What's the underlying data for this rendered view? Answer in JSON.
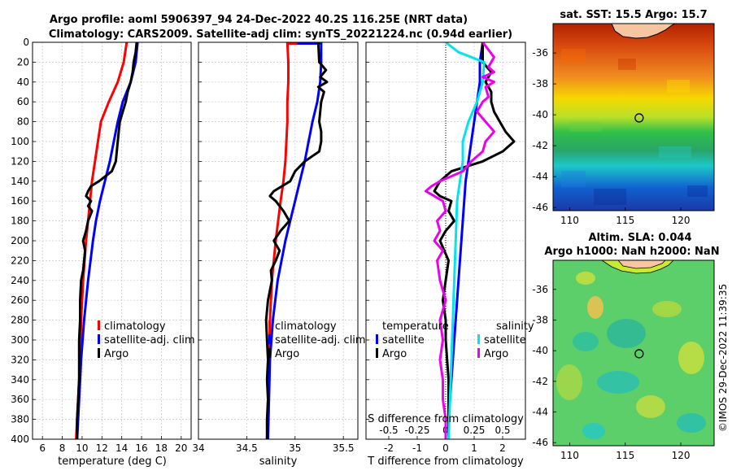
{
  "header": {
    "line1": "Argo profile: aoml 5906397_94 24-Dec-2022 40.2S 116.25E (NRT data)",
    "line2": "Climatology: CARS2009. Satellite-adj clim: synTS_20221224.nc (0.94d earlier)"
  },
  "copyright": "©IMOS 29-Dec-2022 11:39:35",
  "colors": {
    "clim": "#ff0000",
    "sat": "#0000ff",
    "argo": "#000000",
    "sat_sal": "#00e5ee",
    "argo_sal": "#ee00ee"
  },
  "chart_data": [
    {
      "type": "line",
      "id": "temperature",
      "xlabel": "temperature (deg C)",
      "xlim": [
        5,
        21
      ],
      "xticks": [
        6,
        8,
        10,
        12,
        14,
        16,
        18,
        20
      ],
      "ylim": [
        0,
        400
      ],
      "yticks": [
        0,
        20,
        40,
        60,
        80,
        100,
        120,
        140,
        160,
        180,
        200,
        220,
        240,
        260,
        280,
        300,
        320,
        340,
        360,
        380,
        400
      ],
      "legend": [
        "climatology",
        "satellite-adj. clim",
        "Argo"
      ],
      "series": [
        {
          "name": "climatology",
          "color": "red",
          "depth": [
            0,
            20,
            40,
            60,
            80,
            100,
            120,
            140,
            160,
            180,
            200,
            240,
            280,
            320,
            360,
            400
          ],
          "x": [
            14.5,
            14.2,
            13.6,
            12.7,
            11.9,
            11.6,
            11.3,
            11.0,
            10.8,
            10.6,
            10.4,
            10.1,
            9.9,
            9.8,
            9.6,
            9.4
          ]
        },
        {
          "name": "satellite-adj. clim",
          "color": "blue",
          "depth": [
            0,
            20,
            40,
            60,
            80,
            100,
            120,
            140,
            160,
            180,
            200,
            240,
            280,
            320,
            360,
            400
          ],
          "x": [
            15.6,
            15.4,
            14.9,
            14.1,
            13.6,
            13.2,
            12.8,
            12.3,
            11.8,
            11.4,
            11.1,
            10.6,
            10.2,
            9.9,
            9.7,
            9.5
          ]
        },
        {
          "name": "Argo",
          "color": "black",
          "depth": [
            0,
            10,
            20,
            30,
            40,
            50,
            60,
            70,
            80,
            90,
            100,
            110,
            120,
            130,
            140,
            145,
            150,
            155,
            160,
            165,
            170,
            180,
            190,
            200,
            210,
            220,
            230,
            240,
            260,
            280,
            300,
            320,
            340,
            360,
            380,
            400
          ],
          "x": [
            15.5,
            15.4,
            15.2,
            15.1,
            14.9,
            14.6,
            14.4,
            14.1,
            13.8,
            13.7,
            13.6,
            13.5,
            13.4,
            13.0,
            11.7,
            10.9,
            10.6,
            10.4,
            10.9,
            10.6,
            11.0,
            10.6,
            10.4,
            10.1,
            10.3,
            10.2,
            10.1,
            9.9,
            9.8,
            9.8,
            9.7,
            9.7,
            9.7,
            9.6,
            9.5,
            9.5
          ]
        }
      ]
    },
    {
      "type": "line",
      "id": "salinity",
      "xlabel": "salinity",
      "xlim": [
        34,
        35.65
      ],
      "xticks": [
        34,
        34.5,
        35,
        35.5
      ],
      "xticklabels": [
        "34",
        "34.5",
        "35",
        "35.5"
      ],
      "ylim": [
        0,
        400
      ],
      "legend": [
        "climatology",
        "satellite-adj. clim",
        "Argo"
      ],
      "series": [
        {
          "name": "climatology",
          "color": "red",
          "depth": [
            0,
            20,
            40,
            60,
            80,
            100,
            120,
            140,
            160,
            200,
            240,
            280,
            320,
            360,
            400
          ],
          "x": [
            34.92,
            34.93,
            34.93,
            34.92,
            34.92,
            34.91,
            34.9,
            34.88,
            34.85,
            34.8,
            34.76,
            34.74,
            34.73,
            34.72,
            34.71
          ],
          "head": {
            "depth": [
              0,
              0
            ],
            "x": [
              34.92,
              35.02
            ]
          }
        },
        {
          "name": "satellite-adj. clim",
          "color": "blue",
          "depth": [
            0,
            20,
            40,
            60,
            80,
            100,
            120,
            140,
            160,
            180,
            200,
            240,
            280,
            320,
            360,
            400
          ],
          "x": [
            35.27,
            35.27,
            35.26,
            35.23,
            35.18,
            35.14,
            35.1,
            35.05,
            35.0,
            34.95,
            34.9,
            34.82,
            34.77,
            34.74,
            34.73,
            34.72
          ],
          "head": {
            "depth": [
              0,
              0
            ],
            "x": [
              35.02,
              35.27
            ]
          }
        },
        {
          "name": "Argo",
          "color": "black",
          "depth": [
            0,
            20,
            28,
            35,
            40,
            45,
            50,
            60,
            70,
            80,
            90,
            100,
            110,
            120,
            130,
            140,
            150,
            155,
            160,
            170,
            180,
            190,
            200,
            210,
            220,
            230,
            240,
            260,
            280,
            300,
            320,
            340,
            360,
            380,
            400
          ],
          "x": [
            35.24,
            35.25,
            35.32,
            35.26,
            35.33,
            35.24,
            35.3,
            35.27,
            35.26,
            35.25,
            35.27,
            35.27,
            35.25,
            35.1,
            35.0,
            34.95,
            34.78,
            34.74,
            34.8,
            34.88,
            34.94,
            34.85,
            34.78,
            34.84,
            34.8,
            34.75,
            34.76,
            34.72,
            34.7,
            34.71,
            34.72,
            34.71,
            34.72,
            34.71,
            34.71
          ]
        }
      ]
    },
    {
      "type": "line",
      "id": "difference",
      "xlabel": "T difference from climatology",
      "top_xlabel": "S difference from climatology",
      "xlim": [
        -2.8,
        2.8
      ],
      "xticks": [
        -2,
        -1,
        0,
        1,
        2
      ],
      "top_ticks": [
        -0.5,
        -0.25,
        0,
        0.25,
        0.5
      ],
      "top_ticklabels": [
        "-0.5",
        "-0.25",
        "0",
        "0.25",
        "0.5"
      ],
      "ylim": [
        0,
        400
      ],
      "legend_groups": [
        {
          "title": "temperature",
          "items": [
            "satellite",
            "Argo"
          ]
        },
        {
          "title": "salinity",
          "items": [
            "satellite",
            "Argo"
          ]
        }
      ],
      "series": [
        {
          "name": "temperature satellite",
          "color": "blue",
          "depth": [
            0,
            20,
            40,
            60,
            80,
            100,
            140,
            180,
            220,
            260,
            300,
            340,
            380,
            400
          ],
          "x": [
            1.3,
            1.2,
            1.2,
            1.1,
            1.0,
            0.9,
            0.7,
            0.6,
            0.5,
            0.4,
            0.3,
            0.2,
            0.1,
            0.1
          ]
        },
        {
          "name": "temperature Argo",
          "color": "black",
          "depth": [
            0,
            20,
            30,
            40,
            50,
            60,
            70,
            80,
            90,
            100,
            110,
            120,
            130,
            140,
            150,
            155,
            160,
            170,
            180,
            190,
            200,
            220,
            240,
            260,
            280,
            300,
            340,
            380,
            400
          ],
          "x": [
            1.3,
            1.3,
            1.6,
            1.4,
            1.6,
            1.6,
            1.7,
            1.9,
            2.1,
            2.4,
            2.0,
            1.3,
            0.2,
            -0.2,
            -0.4,
            -0.2,
            0.2,
            0.1,
            0.3,
            0.0,
            -0.2,
            0.1,
            0.0,
            -0.1,
            0.0,
            0.0,
            0.1,
            0.1,
            0.1
          ]
        },
        {
          "name": "salinity satellite",
          "color": "cyan",
          "depth": [
            0,
            10,
            20,
            40,
            60,
            80,
            100,
            120,
            140,
            160,
            200,
            240,
            280,
            320,
            360,
            400
          ],
          "x": [
            0.0,
            0.45,
            1.35,
            1.3,
            1.1,
            0.8,
            0.6,
            0.6,
            0.5,
            0.4,
            0.35,
            0.3,
            0.25,
            0.2,
            0.15,
            0.1
          ]
        },
        {
          "name": "salinity Argo",
          "color": "magenta",
          "depth": [
            0,
            15,
            25,
            30,
            35,
            40,
            45,
            55,
            60,
            70,
            80,
            90,
            100,
            110,
            120,
            130,
            140,
            145,
            150,
            155,
            160,
            170,
            180,
            190,
            200,
            210,
            220,
            240,
            260,
            280,
            300,
            320,
            340,
            360,
            380,
            400
          ],
          "x": [
            1.3,
            1.7,
            1.5,
            1.7,
            1.3,
            1.7,
            1.4,
            1.5,
            1.3,
            1.1,
            1.4,
            1.7,
            1.4,
            1.3,
            0.9,
            0.6,
            -0.2,
            -0.5,
            -0.7,
            -0.4,
            -0.1,
            0.0,
            -0.3,
            -0.2,
            -0.4,
            -0.1,
            -0.3,
            -0.2,
            0.0,
            -0.2,
            -0.1,
            -0.2,
            -0.1,
            -0.1,
            0.0,
            0.0
          ]
        }
      ]
    },
    {
      "type": "heatmap",
      "id": "sst_map",
      "title": "sat. SST: 15.5 Argo: 15.7",
      "xlim": [
        108.5,
        123
      ],
      "ylim": [
        -46.2,
        -34.1
      ],
      "xticks": [
        110,
        115,
        120
      ],
      "yticks": [
        -36,
        -38,
        -40,
        -42,
        -44,
        -46
      ],
      "marker": {
        "lon": 116.25,
        "lat": -40.2
      }
    },
    {
      "type": "heatmap",
      "id": "sla_map",
      "title_line1": "Altim. SLA: 0.044",
      "title_line2": "Argo h1000: NaN h2000: NaN",
      "xlim": [
        108.5,
        123
      ],
      "ylim": [
        -46.2,
        -34.1
      ],
      "xticks": [
        110,
        115,
        120
      ],
      "yticks": [
        -36,
        -38,
        -40,
        -42,
        -44,
        -46
      ],
      "marker": {
        "lon": 116.25,
        "lat": -40.2
      }
    }
  ]
}
